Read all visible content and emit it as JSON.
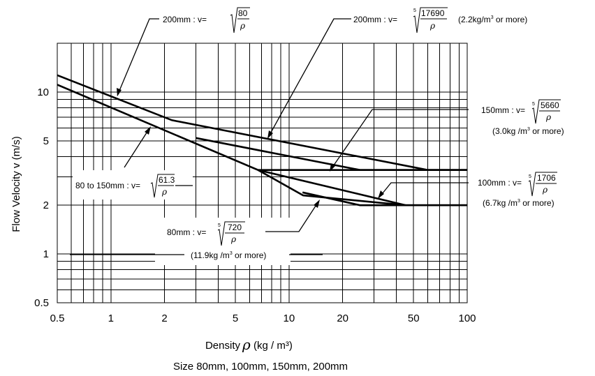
{
  "chart_data": {
    "type": "line",
    "xlabel": "Density",
    "xlabel_symbol": "ρ",
    "xlabel_unit": "(kg / m³)",
    "ylabel": "Flow Velocity v (m/s)",
    "caption": "Size 80mm, 100mm, 150mm, 200mm",
    "x_scale": "log",
    "y_scale": "log",
    "xlim": [
      0.5,
      100
    ],
    "ylim": [
      0.5,
      20
    ],
    "x_ticks": [
      0.5,
      1,
      2,
      5,
      10,
      20,
      50,
      100
    ],
    "x_tick_labels": [
      "0.5",
      "1",
      "2",
      "5",
      "10",
      "20",
      "50",
      "100"
    ],
    "y_ticks": [
      0.5,
      1,
      2,
      5,
      10
    ],
    "y_tick_labels": [
      "0.5",
      "1",
      "2",
      "5",
      "10"
    ],
    "grid": true,
    "series": [
      {
        "x": [
          0.5,
          2.2,
          60,
          100
        ],
        "y": [
          12.7,
          6.7,
          3.3,
          3.3
        ]
      },
      {
        "x": [
          0.5,
          6.7,
          100
        ],
        "y": [
          11.1,
          3.3,
          3.3
        ]
      },
      {
        "x": [
          3.0,
          25,
          100
        ],
        "y": [
          5.2,
          3.3,
          3.3
        ]
      },
      {
        "x": [
          6.7,
          12,
          45,
          100
        ],
        "y": [
          3.3,
          2.3,
          2.0,
          2.0
        ]
      },
      {
        "x": [
          6.7,
          45
        ],
        "y": [
          3.3,
          2.0
        ]
      },
      {
        "x": [
          11.9,
          25,
          100
        ],
        "y": [
          2.4,
          2.0,
          2.0
        ]
      }
    ],
    "annotations": {
      "a200_low": {
        "prefix": "200mm : v=",
        "numerator": "80",
        "symbol": "ρ"
      },
      "a200_high": {
        "prefix": "200mm : v=",
        "root_index": "5",
        "numerator": "17690",
        "symbol": "ρ",
        "note_pre": "(2.2kg/m",
        "note_sup": "3",
        "note_post": " or more)"
      },
      "a150": {
        "prefix": "150mm : v=",
        "root_index": "5",
        "numerator": "5660",
        "symbol": "ρ",
        "note_pre": "(3.0kg /m",
        "note_sup": "3",
        "note_post": " or more)"
      },
      "a100": {
        "prefix": "100mm : v=",
        "root_index": "5",
        "numerator": "1706",
        "symbol": "ρ",
        "note_pre": "(6.7kg /m",
        "note_sup": "3",
        "note_post": " or more)"
      },
      "a80_150": {
        "prefix": "80 to 150mm : v=",
        "numerator": "61.3",
        "symbol": "ρ"
      },
      "a80": {
        "prefix": "80mm : v=",
        "root_index": "5",
        "numerator": "720",
        "symbol": "ρ",
        "note_pre": "(11.9kg /m",
        "note_sup": "3",
        "note_post": " or more)"
      }
    }
  }
}
